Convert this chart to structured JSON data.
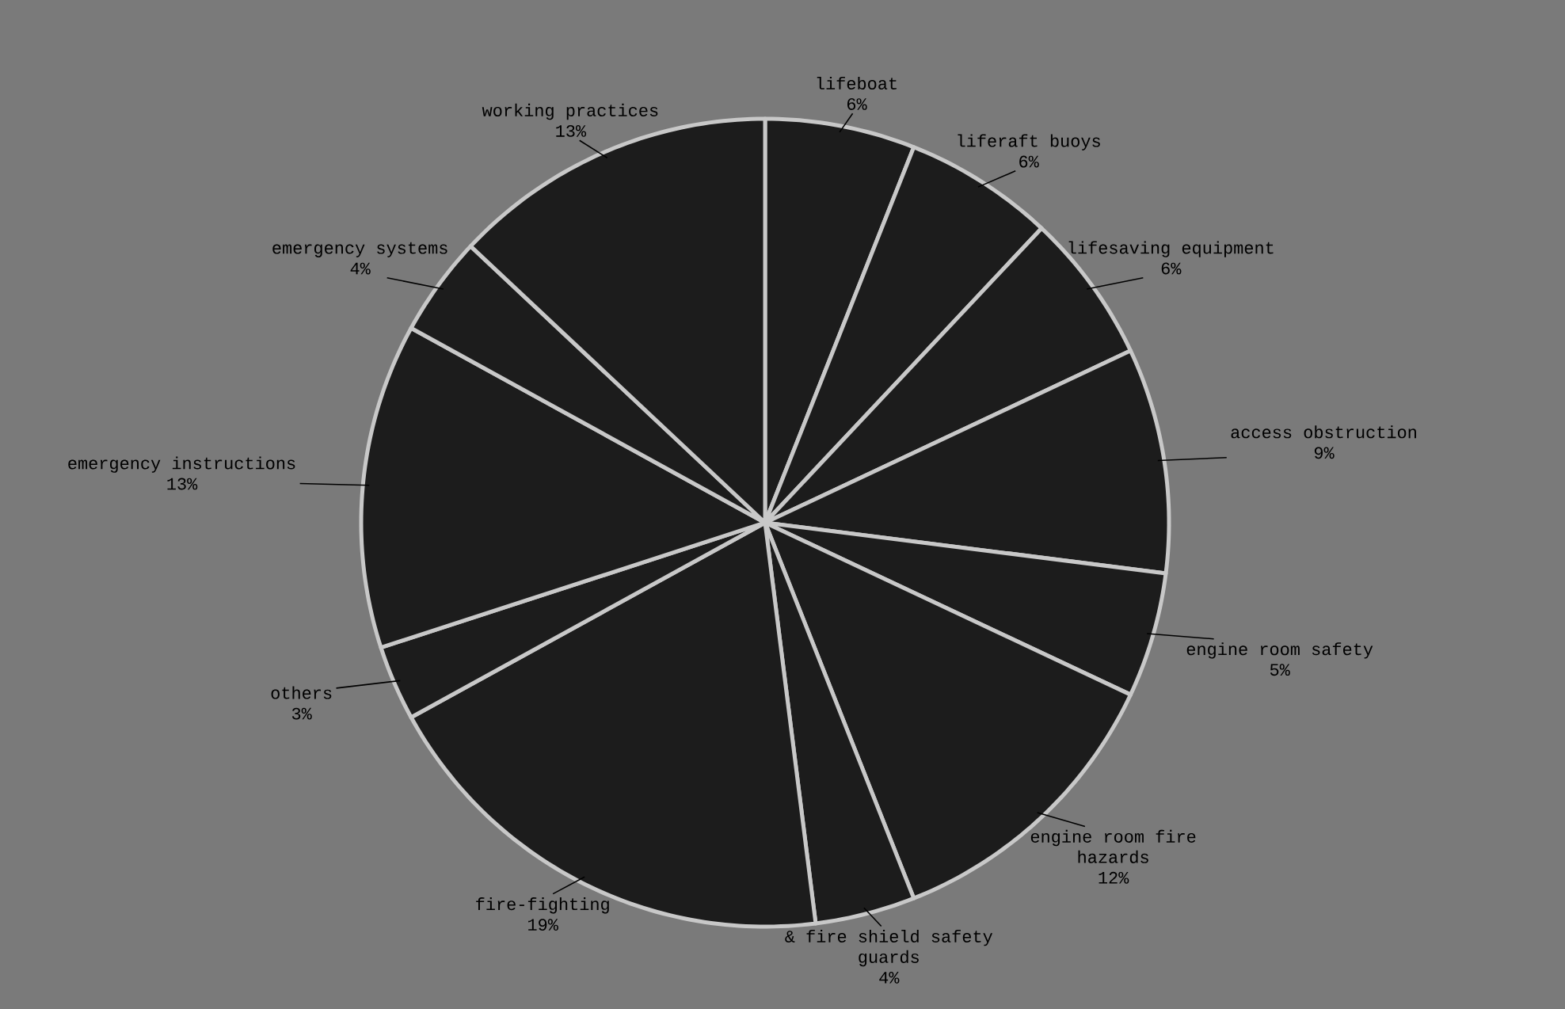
{
  "chart_data": {
    "type": "pie",
    "categories": [
      "lifeboat",
      "liferaft buoys",
      "lifesaving equipment",
      "access obstruction",
      "engine room safety",
      "engine room fire hazards",
      "& fire shield safety guards",
      "fire-fighting",
      "others",
      "emergency instructions",
      "emergency systems",
      "working practices"
    ],
    "values": [
      6,
      6,
      6,
      9,
      5,
      12,
      4,
      19,
      3,
      13,
      4,
      13
    ],
    "value_labels": [
      "6%",
      "6%",
      "6%",
      "9%",
      "5%",
      "12%",
      "4%",
      "19%",
      "3%",
      "13%",
      "4%",
      "13%"
    ],
    "colors": [
      "#1c1c1c",
      "#1c1c1c",
      "#1c1c1c",
      "#1c1c1c",
      "#1c1c1c",
      "#1c1c1c",
      "#1c1c1c",
      "#1c1c1c",
      "#1c1c1c",
      "#1c1c1c",
      "#1c1c1c",
      "#1c1c1c"
    ]
  }
}
